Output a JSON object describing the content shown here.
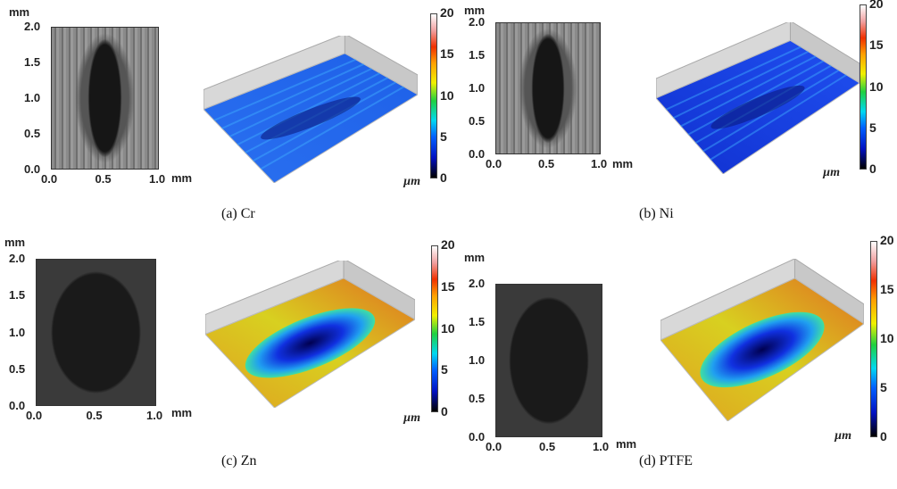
{
  "figure": {
    "panels": [
      {
        "id": "a",
        "caption": "(a) Cr",
        "material": "Cr",
        "x_unit": "mm",
        "y_unit": "mm",
        "x_ticks": [
          "0.0",
          "0.5",
          "1.0"
        ],
        "y_ticks": [
          "0.0",
          "0.5",
          "1.0",
          "1.5",
          "2.0"
        ],
        "colorbar": {
          "ticks": [
            "0",
            "5",
            "10",
            "15",
            "20"
          ],
          "unit": "µm"
        },
        "surface_style": "flat-blue",
        "micrograph_style": "gray-scratched"
      },
      {
        "id": "b",
        "caption": "(b) Ni",
        "material": "Ni",
        "x_unit": "mm",
        "y_unit": "mm",
        "x_ticks": [
          "0.0",
          "0.5",
          "1.0"
        ],
        "y_ticks": [
          "0.0",
          "0.5",
          "1.0",
          "1.5",
          "2.0"
        ],
        "colorbar": {
          "ticks": [
            "0",
            "5",
            "10",
            "15",
            "20"
          ],
          "unit": "µm"
        },
        "surface_style": "flat-darkblue",
        "micrograph_style": "gray-scratched"
      },
      {
        "id": "c",
        "caption": "(c) Zn",
        "material": "Zn",
        "x_unit": "mm",
        "y_unit": "mm",
        "x_ticks": [
          "0.0",
          "0.5",
          "1.0"
        ],
        "y_ticks": [
          "0.0",
          "0.5",
          "1.0",
          "1.5",
          "2.0"
        ],
        "colorbar": {
          "ticks": [
            "0",
            "5",
            "10",
            "15",
            "20"
          ],
          "unit": "µm"
        },
        "surface_style": "worn-groove",
        "micrograph_style": "dark"
      },
      {
        "id": "d",
        "caption": "(d) PTFE",
        "material": "PTFE",
        "x_unit": "mm",
        "y_unit": "mm",
        "x_ticks": [
          "0.0",
          "0.5",
          "1.0"
        ],
        "y_ticks": [
          "0.0",
          "0.5",
          "1.0",
          "1.5",
          "2.0"
        ],
        "colorbar": {
          "ticks": [
            "0",
            "5",
            "10",
            "15",
            "20"
          ],
          "unit": "µm"
        },
        "surface_style": "worn-groove",
        "micrograph_style": "dark"
      }
    ]
  }
}
